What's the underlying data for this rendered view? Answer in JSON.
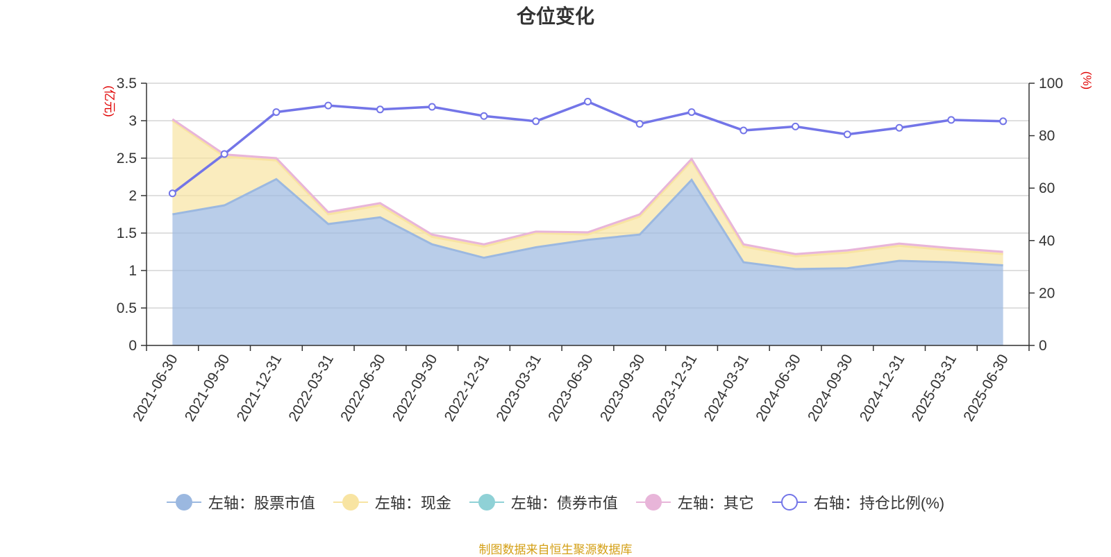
{
  "chart_data": {
    "type": "area",
    "title": "仓位变化",
    "x": [
      "2021-06-30",
      "2021-09-30",
      "2021-12-31",
      "2022-03-31",
      "2022-06-30",
      "2022-09-30",
      "2022-12-31",
      "2023-03-31",
      "2023-06-30",
      "2023-09-30",
      "2023-12-31",
      "2024-03-31",
      "2024-06-30",
      "2024-09-30",
      "2024-12-31",
      "2025-03-31",
      "2025-06-30"
    ],
    "left_axis": {
      "unit": "(亿元)",
      "ylim": [
        0,
        3.5
      ],
      "ticks": [
        "0",
        "0.5",
        "1",
        "1.5",
        "2",
        "2.5",
        "3",
        "3.5"
      ]
    },
    "right_axis": {
      "unit": "(%)",
      "ylim": [
        0,
        100
      ],
      "ticks": [
        "0",
        "20",
        "40",
        "60",
        "80",
        "100"
      ]
    },
    "grid": true,
    "legend_position": "bottom",
    "series": [
      {
        "name": "左轴：股票市值",
        "axis": "left",
        "kind": "stacked-area",
        "color": "#9bb8e0",
        "values": [
          1.75,
          1.87,
          2.22,
          1.62,
          1.71,
          1.35,
          1.17,
          1.31,
          1.41,
          1.48,
          2.21,
          1.11,
          1.02,
          1.03,
          1.13,
          1.11,
          1.07
        ]
      },
      {
        "name": "左轴：现金",
        "axis": "left",
        "kind": "stacked-area",
        "color": "#f8e4a2",
        "values": [
          1.25,
          0.65,
          0.25,
          0.13,
          0.16,
          0.1,
          0.15,
          0.19,
          0.07,
          0.24,
          0.25,
          0.21,
          0.17,
          0.21,
          0.2,
          0.16,
          0.15
        ]
      },
      {
        "name": "左轴：债券市值",
        "axis": "left",
        "kind": "stacked-area",
        "color": "#8fd1d6",
        "values": [
          0,
          0,
          0,
          0,
          0,
          0,
          0,
          0,
          0,
          0,
          0,
          0,
          0,
          0,
          0,
          0,
          0
        ]
      },
      {
        "name": "左轴：其它",
        "axis": "left",
        "kind": "stacked-area",
        "color": "#e8b5d9",
        "values": [
          0.02,
          0.03,
          0.03,
          0.03,
          0.03,
          0.03,
          0.03,
          0.02,
          0.03,
          0.03,
          0.03,
          0.03,
          0.03,
          0.03,
          0.03,
          0.03,
          0.03
        ]
      },
      {
        "name": "右轴：持仓比例(%)",
        "axis": "right",
        "kind": "line",
        "color": "#7375e8",
        "values": [
          58,
          73,
          89,
          91.5,
          90,
          91,
          87.5,
          85.5,
          93,
          84.5,
          89,
          82,
          83.5,
          80.5,
          83,
          86,
          85.5
        ]
      }
    ]
  },
  "source": "制图数据来自恒生聚源数据库"
}
